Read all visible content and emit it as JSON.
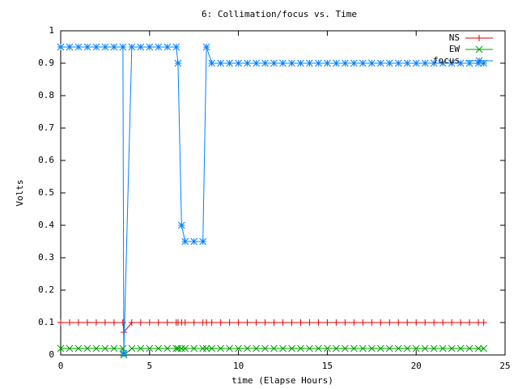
{
  "chart_data": {
    "type": "line",
    "title": "6: Collimation/focus vs. Time",
    "x_label": "time (Elapse Hours)",
    "y_label": "Volts",
    "x": [
      0,
      0.5,
      1,
      1.5,
      2,
      2.5,
      3,
      3.5,
      3.55,
      4,
      4.5,
      5,
      5.5,
      6,
      6.5,
      6.6,
      6.8,
      7,
      7.5,
      8,
      8.2,
      8.5,
      9,
      9.5,
      10,
      10.5,
      11,
      11.5,
      12,
      12.5,
      13,
      13.5,
      14,
      14.5,
      15,
      15.5,
      16,
      16.5,
      17,
      17.5,
      18,
      18.5,
      19,
      19.5,
      20,
      20.5,
      21,
      21.5,
      22,
      22.5,
      23,
      23.5,
      23.8
    ],
    "series": [
      {
        "name": "NS",
        "color": "#e00000",
        "marker": "plus",
        "values": [
          0.1,
          0.1,
          0.1,
          0.1,
          0.1,
          0.1,
          0.1,
          0.1,
          0.07,
          0.1,
          0.1,
          0.1,
          0.1,
          0.1,
          0.1,
          0.1,
          0.1,
          0.1,
          0.1,
          0.1,
          0.1,
          0.1,
          0.1,
          0.1,
          0.1,
          0.1,
          0.1,
          0.1,
          0.1,
          0.1,
          0.1,
          0.1,
          0.1,
          0.1,
          0.1,
          0.1,
          0.1,
          0.1,
          0.1,
          0.1,
          0.1,
          0.1,
          0.1,
          0.1,
          0.1,
          0.1,
          0.1,
          0.1,
          0.1,
          0.1,
          0.1,
          0.1,
          0.1
        ]
      },
      {
        "name": "EW",
        "color": "#00a000",
        "marker": "cross",
        "values": [
          0.02,
          0.02,
          0.02,
          0.02,
          0.02,
          0.02,
          0.02,
          0.02,
          0,
          0.02,
          0.02,
          0.02,
          0.02,
          0.02,
          0.02,
          0.02,
          0.02,
          0.02,
          0.02,
          0.02,
          0.02,
          0.02,
          0.02,
          0.02,
          0.02,
          0.02,
          0.02,
          0.02,
          0.02,
          0.02,
          0.02,
          0.02,
          0.02,
          0.02,
          0.02,
          0.02,
          0.02,
          0.02,
          0.02,
          0.02,
          0.02,
          0.02,
          0.02,
          0.02,
          0.02,
          0.02,
          0.02,
          0.02,
          0.02,
          0.02,
          0.02,
          0.02,
          0.02
        ]
      },
      {
        "name": "focus",
        "color": "#0080ff",
        "marker": "star",
        "values": [
          0.95,
          0.95,
          0.95,
          0.95,
          0.95,
          0.95,
          0.95,
          0.95,
          0.005,
          0.95,
          0.95,
          0.95,
          0.95,
          0.95,
          0.95,
          0.9,
          0.4,
          0.35,
          0.35,
          0.35,
          0.95,
          0.9,
          0.9,
          0.9,
          0.9,
          0.9,
          0.9,
          0.9,
          0.9,
          0.9,
          0.9,
          0.9,
          0.9,
          0.9,
          0.9,
          0.9,
          0.9,
          0.9,
          0.9,
          0.9,
          0.9,
          0.9,
          0.9,
          0.9,
          0.9,
          0.9,
          0.9,
          0.9,
          0.9,
          0.9,
          0.9,
          0.9,
          0.9
        ]
      }
    ],
    "xlim": [
      0,
      25
    ],
    "xticks": [
      0,
      5,
      10,
      15,
      20,
      25
    ],
    "ylim": [
      0,
      1
    ],
    "yticks": [
      0,
      0.1,
      0.2,
      0.3,
      0.4,
      0.5,
      0.6,
      0.7,
      0.8,
      0.9,
      1
    ],
    "grid": false,
    "legend": "top-right"
  }
}
